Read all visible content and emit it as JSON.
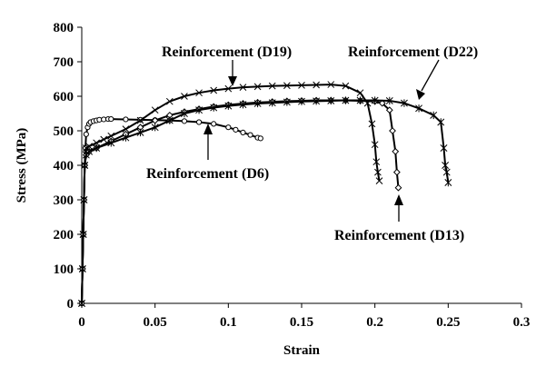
{
  "chart_data": {
    "type": "line",
    "title": "",
    "xlabel": "Strain",
    "ylabel": "Stress (MPa)",
    "xlim": [
      0,
      0.3
    ],
    "ylim": [
      0,
      800
    ],
    "xticks": [
      "0",
      "0.05",
      "0.1",
      "0.15",
      "0.2",
      "0.25",
      "0.3"
    ],
    "yticks": [
      "0",
      "100",
      "200",
      "300",
      "400",
      "500",
      "600",
      "700",
      "800"
    ],
    "xtick_values": [
      0,
      0.05,
      0.1,
      0.15,
      0.2,
      0.25,
      0.3
    ],
    "ytick_values": [
      0,
      100,
      200,
      300,
      400,
      500,
      600,
      700,
      800
    ],
    "grid": false,
    "legend": "none",
    "series": [
      {
        "marker": "circle",
        "x": [
          0,
          0.0005,
          0.001,
          0.0015,
          0.002,
          0.0025,
          0.003,
          0.004,
          0.005,
          0.006,
          0.008,
          0.01,
          0.012,
          0.015,
          0.018,
          0.02,
          0.03,
          0.04,
          0.05,
          0.06,
          0.07,
          0.08,
          0.09,
          0.1,
          0.105,
          0.11,
          0.115,
          0.12,
          0.122
        ],
        "y": [
          0,
          100,
          200,
          300,
          400,
          450,
          490,
          510,
          520,
          525,
          528,
          530,
          532,
          533,
          534,
          534,
          533,
          532,
          531,
          530,
          528,
          525,
          520,
          510,
          503,
          495,
          488,
          480,
          478
        ]
      },
      {
        "marker": "cross",
        "x": [
          0,
          0.0005,
          0.001,
          0.0015,
          0.002,
          0.003,
          0.005,
          0.01,
          0.015,
          0.02,
          0.03,
          0.04,
          0.05,
          0.06,
          0.07,
          0.08,
          0.09,
          0.1,
          0.11,
          0.12,
          0.13,
          0.14,
          0.15,
          0.16,
          0.17,
          0.18,
          0.19,
          0.195,
          0.198,
          0.2,
          0.201,
          0.202,
          0.203
        ],
        "y": [
          0,
          100,
          200,
          300,
          400,
          450,
          455,
          465,
          475,
          485,
          505,
          530,
          560,
          585,
          600,
          610,
          617,
          622,
          626,
          628,
          630,
          631,
          632,
          633,
          634,
          630,
          610,
          580,
          520,
          460,
          410,
          380,
          355
        ]
      },
      {
        "marker": "diamond",
        "x": [
          0,
          0.0005,
          0.001,
          0.0015,
          0.002,
          0.003,
          0.005,
          0.01,
          0.02,
          0.03,
          0.04,
          0.05,
          0.06,
          0.07,
          0.08,
          0.09,
          0.1,
          0.11,
          0.12,
          0.13,
          0.14,
          0.15,
          0.16,
          0.17,
          0.18,
          0.19,
          0.2,
          0.205,
          0.21,
          0.212,
          0.214,
          0.215,
          0.216
        ],
        "y": [
          0,
          100,
          200,
          300,
          400,
          430,
          440,
          450,
          470,
          490,
          510,
          530,
          545,
          555,
          563,
          570,
          575,
          579,
          582,
          584,
          586,
          587,
          588,
          588,
          588,
          587,
          585,
          580,
          560,
          500,
          440,
          380,
          335
        ]
      },
      {
        "marker": "asterisk",
        "x": [
          0,
          0.0005,
          0.001,
          0.0015,
          0.002,
          0.003,
          0.005,
          0.01,
          0.02,
          0.03,
          0.04,
          0.05,
          0.06,
          0.07,
          0.08,
          0.09,
          0.1,
          0.11,
          0.12,
          0.13,
          0.14,
          0.15,
          0.16,
          0.17,
          0.18,
          0.19,
          0.2,
          0.21,
          0.22,
          0.23,
          0.24,
          0.245,
          0.247,
          0.248,
          0.249,
          0.25
        ],
        "y": [
          0,
          100,
          200,
          300,
          400,
          430,
          440,
          450,
          465,
          480,
          495,
          510,
          530,
          550,
          560,
          567,
          572,
          576,
          579,
          581,
          583,
          585,
          586,
          587,
          588,
          588,
          588,
          587,
          580,
          565,
          545,
          525,
          450,
          400,
          380,
          350
        ]
      }
    ],
    "annotations": [
      {
        "text": "Reinforcement (D19)"
      },
      {
        "text": "Reinforcement (D22)"
      },
      {
        "text": "Reinforcement (D6)"
      },
      {
        "text": "Reinforcement (D13)"
      }
    ]
  }
}
